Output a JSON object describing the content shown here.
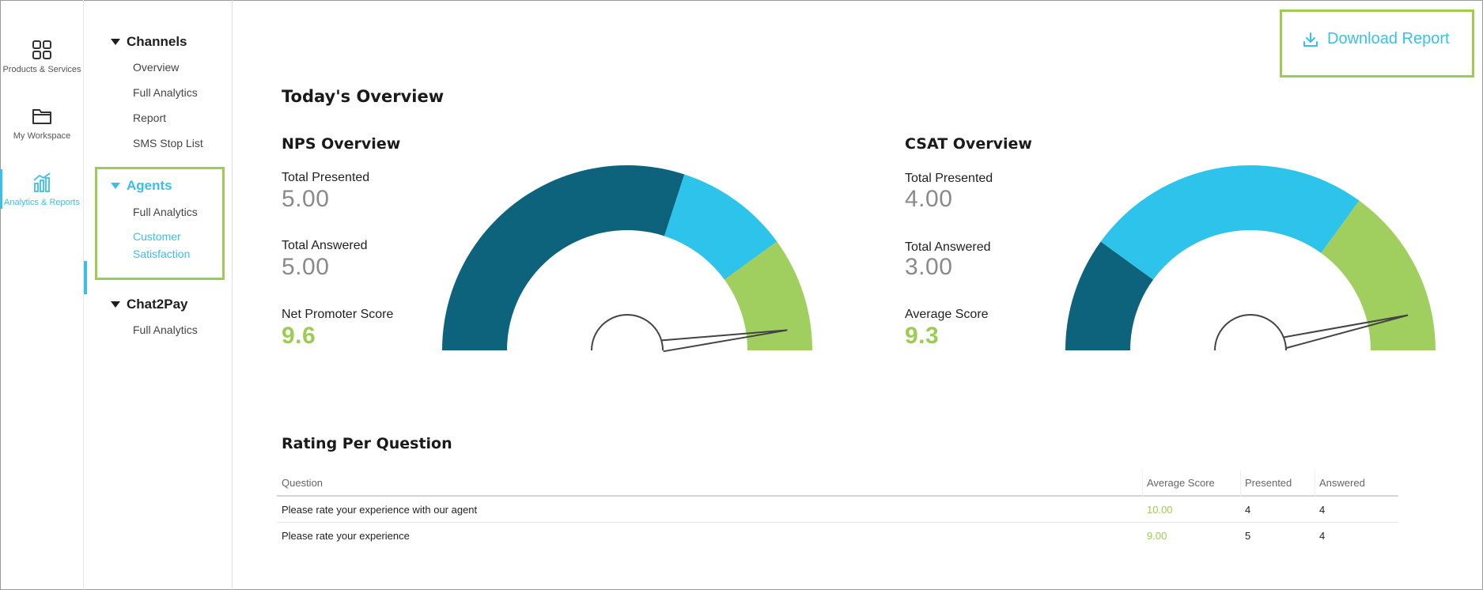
{
  "rail": {
    "items": [
      {
        "label": "Products & Services",
        "icon": "grid-icon"
      },
      {
        "label": "My Workspace",
        "icon": "folder-icon"
      },
      {
        "label": "Analytics & Reports",
        "icon": "bar-chart-icon"
      }
    ]
  },
  "subnav": {
    "channels": {
      "title": "Channels",
      "links": [
        "Overview",
        "Full Analytics",
        "Report",
        "SMS Stop List"
      ]
    },
    "agents": {
      "title": "Agents",
      "links": [
        "Full Analytics",
        "Customer Satisfaction"
      ]
    },
    "chat2pay": {
      "title": "Chat2Pay",
      "links": [
        "Full Analytics"
      ]
    }
  },
  "toolbar": {
    "download_label": "Download Report",
    "download_icon": "download-icon"
  },
  "page_title": "Today's Overview",
  "nps": {
    "title": "NPS Overview",
    "presented_label": "Total Presented",
    "presented_value": "5.00",
    "answered_label": "Total Answered",
    "answered_value": "5.00",
    "score_label": "Net Promoter Score",
    "score_value": "9.6"
  },
  "csat": {
    "title": "CSAT Overview",
    "presented_label": "Total Presented",
    "presented_value": "4.00",
    "answered_label": "Total Answered",
    "answered_value": "3.00",
    "score_label": "Average Score",
    "score_value": "9.3"
  },
  "colors": {
    "dark": "#0e637c",
    "blue": "#2ec3ea",
    "green": "#a0cf5f",
    "accent": "#3ac0e8",
    "highlight": "#9ccc53"
  },
  "chart_data": [
    {
      "type": "gauge",
      "name": "NPS",
      "range": [
        0,
        10
      ],
      "bands": [
        {
          "from": 0,
          "to": 6,
          "color": "#0e637c"
        },
        {
          "from": 6,
          "to": 8,
          "color": "#2ec3ea"
        },
        {
          "from": 8,
          "to": 10,
          "color": "#a0cf5f"
        }
      ],
      "value": 9.6
    },
    {
      "type": "gauge",
      "name": "CSAT",
      "range": [
        0,
        10
      ],
      "bands": [
        {
          "from": 0,
          "to": 2,
          "color": "#0e637c"
        },
        {
          "from": 2,
          "to": 7,
          "color": "#2ec3ea"
        },
        {
          "from": 7,
          "to": 10,
          "color": "#a0cf5f"
        }
      ],
      "value": 9.3
    }
  ],
  "rating": {
    "title": "Rating Per Question",
    "headers": {
      "question": "Question",
      "avg": "Average Score",
      "presented": "Presented",
      "answered": "Answered"
    },
    "rows": [
      {
        "question": "Please rate your experience with our agent",
        "avg": "10.00",
        "presented": "4",
        "answered": "4"
      },
      {
        "question": "Please rate your experience",
        "avg": "9.00",
        "presented": "5",
        "answered": "4"
      }
    ]
  }
}
